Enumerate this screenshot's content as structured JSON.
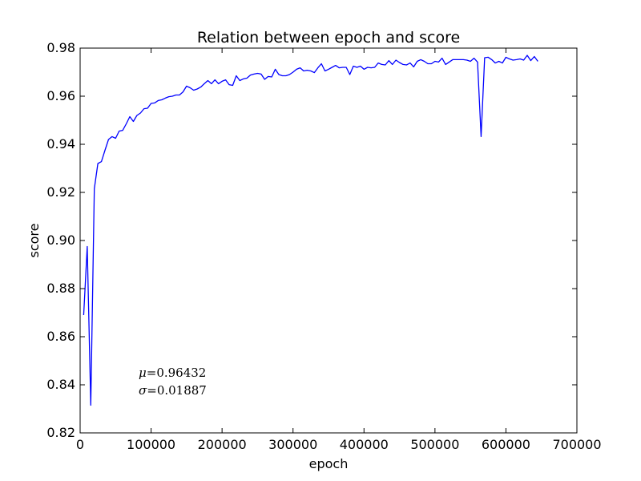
{
  "chart_data": {
    "type": "line",
    "title": "Relation between epoch and score",
    "xlabel": "epoch",
    "ylabel": "score",
    "xlim": [
      0,
      700000
    ],
    "ylim": [
      0.82,
      0.98
    ],
    "xticks": [
      0,
      100000,
      200000,
      300000,
      400000,
      500000,
      600000,
      700000
    ],
    "xtick_labels": [
      "0",
      "100000",
      "200000",
      "300000",
      "400000",
      "500000",
      "600000",
      "700000"
    ],
    "yticks": [
      0.82,
      0.84,
      0.86,
      0.88,
      0.9,
      0.92,
      0.94,
      0.96,
      0.98
    ],
    "ytick_labels": [
      "0.82",
      "0.84",
      "0.86",
      "0.88",
      "0.90",
      "0.92",
      "0.94",
      "0.96",
      "0.98"
    ],
    "grid": false,
    "line_color": "#0000ff",
    "annotations": [
      {
        "symbol": "μ",
        "text": "=0.96432"
      },
      {
        "symbol": "σ",
        "text": "=0.01887"
      }
    ],
    "series": [
      {
        "x": [
          5000,
          10000,
          15000,
          20000,
          25000,
          30000,
          35000,
          40000,
          45000,
          50000,
          55000,
          60000,
          65000,
          70000,
          75000,
          80000,
          85000,
          90000,
          95000,
          100000,
          105000,
          110000,
          115000,
          120000,
          125000,
          130000,
          135000,
          140000,
          145000,
          150000,
          155000,
          160000,
          165000,
          170000,
          175000,
          180000,
          185000,
          190000,
          195000,
          200000,
          205000,
          210000,
          215000,
          220000,
          225000,
          230000,
          235000,
          240000,
          245000,
          250000,
          255000,
          260000,
          265000,
          270000,
          275000,
          280000,
          285000,
          290000,
          295000,
          300000,
          305000,
          310000,
          315000,
          320000,
          325000,
          330000,
          335000,
          340000,
          345000,
          350000,
          355000,
          360000,
          365000,
          370000,
          375000,
          380000,
          385000,
          390000,
          395000,
          400000,
          405000,
          410000,
          415000,
          420000,
          425000,
          430000,
          435000,
          440000,
          445000,
          450000,
          455000,
          460000,
          465000,
          470000,
          475000,
          480000,
          485000,
          490000,
          495000,
          500000,
          505000,
          510000,
          515000,
          520000,
          525000,
          530000,
          535000,
          540000,
          545000,
          550000,
          555000,
          560000,
          565000,
          570000,
          575000,
          580000,
          585000,
          590000,
          595000,
          600000,
          605000,
          610000,
          615000,
          620000,
          625000,
          630000,
          635000,
          640000,
          645000
        ],
        "y": [
          0.869,
          0.8975,
          0.8315,
          0.9215,
          0.932,
          0.9328,
          0.9375,
          0.942,
          0.9432,
          0.9425,
          0.9455,
          0.9458,
          0.9485,
          0.9515,
          0.9495,
          0.952,
          0.953,
          0.9548,
          0.955,
          0.957,
          0.9572,
          0.9582,
          0.9585,
          0.9592,
          0.9598,
          0.96,
          0.9605,
          0.9605,
          0.9618,
          0.9642,
          0.9635,
          0.9625,
          0.963,
          0.9638,
          0.9652,
          0.9665,
          0.9652,
          0.9668,
          0.9652,
          0.9662,
          0.9668,
          0.9648,
          0.9645,
          0.9685,
          0.9665,
          0.9672,
          0.9675,
          0.9688,
          0.9692,
          0.9695,
          0.9692,
          0.967,
          0.9682,
          0.968,
          0.9712,
          0.969,
          0.9685,
          0.9685,
          0.969,
          0.97,
          0.9712,
          0.9718,
          0.9705,
          0.9708,
          0.9705,
          0.9698,
          0.9718,
          0.9735,
          0.9705,
          0.9712,
          0.972,
          0.9728,
          0.9718,
          0.972,
          0.972,
          0.969,
          0.9725,
          0.972,
          0.9725,
          0.9712,
          0.972,
          0.9718,
          0.972,
          0.9738,
          0.9732,
          0.973,
          0.9748,
          0.9732,
          0.975,
          0.974,
          0.9732,
          0.973,
          0.9738,
          0.9722,
          0.9745,
          0.9752,
          0.9745,
          0.9735,
          0.9735,
          0.9745,
          0.9742,
          0.9758,
          0.9732,
          0.9742,
          0.9752,
          0.9752,
          0.9752,
          0.9752,
          0.975,
          0.9745,
          0.9758,
          0.9742,
          0.9432,
          0.976,
          0.9762,
          0.9752,
          0.9738,
          0.9745,
          0.9738,
          0.9762,
          0.9755,
          0.975,
          0.9752,
          0.9755,
          0.975,
          0.977,
          0.9748,
          0.9765,
          0.9745
        ]
      }
    ]
  }
}
